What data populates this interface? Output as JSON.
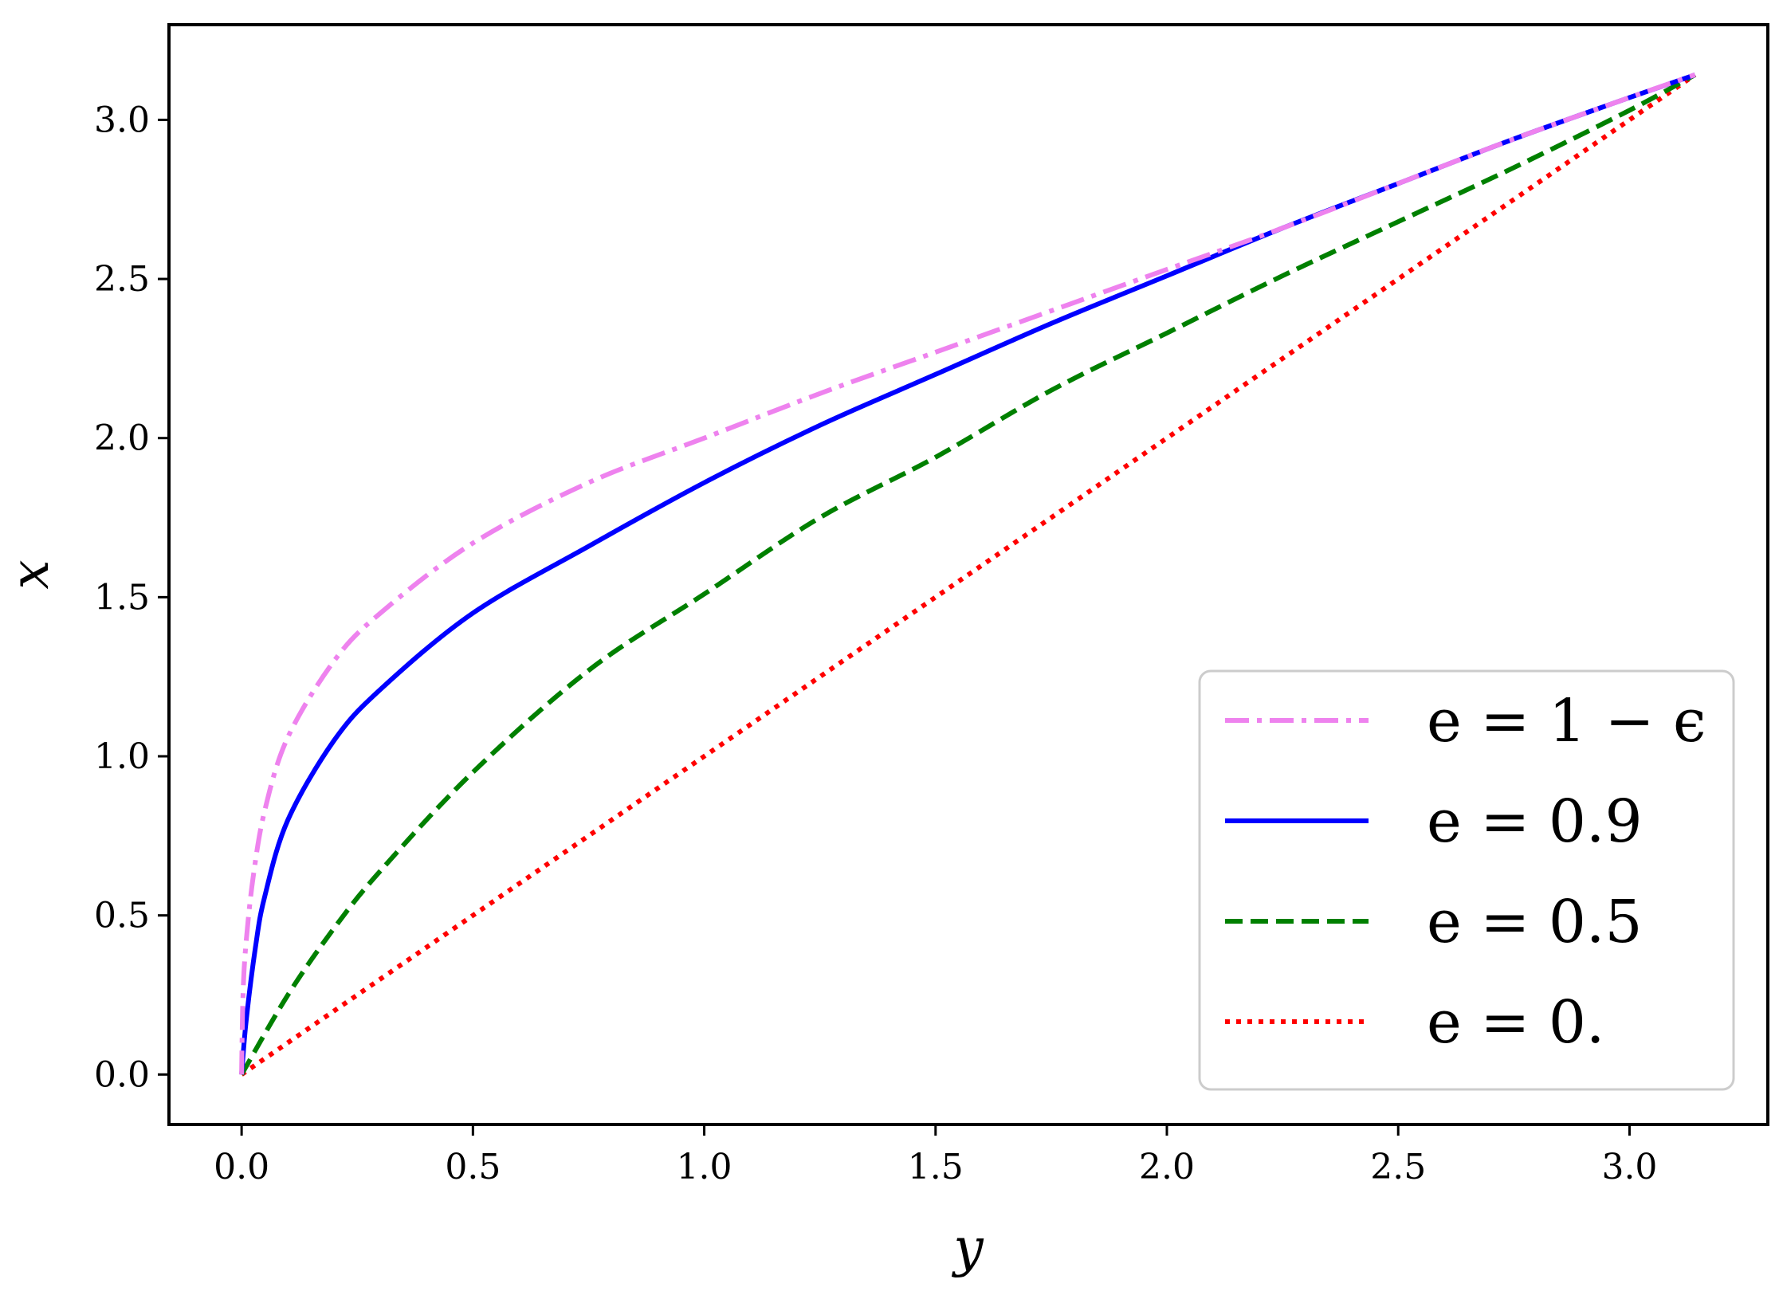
{
  "chart_data": {
    "type": "line",
    "title": "",
    "xlabel": "y",
    "ylabel": "x",
    "xlim": [
      -0.157,
      3.299
    ],
    "ylim": [
      -0.157,
      3.299
    ],
    "xticks": [
      0.0,
      0.5,
      1.0,
      1.5,
      2.0,
      2.5,
      3.0
    ],
    "yticks": [
      0.0,
      0.5,
      1.0,
      1.5,
      2.0,
      2.5,
      3.0
    ],
    "xtick_labels": [
      "0.0",
      "0.5",
      "1.0",
      "1.5",
      "2.0",
      "2.5",
      "3.0"
    ],
    "ytick_labels": [
      "0.0",
      "0.5",
      "1.0",
      "1.5",
      "2.0",
      "2.5",
      "3.0"
    ],
    "grid": false,
    "legend_position": "lower-right",
    "series": [
      {
        "name": "e = 1 − ϵ",
        "color": "#ee82ee",
        "dash": "dashdot",
        "x": [
          0.0,
          0.003,
          0.01,
          0.025,
          0.05,
          0.1,
          0.2,
          0.3,
          0.5,
          0.75,
          1.0,
          1.25,
          1.5,
          1.75,
          2.0,
          2.25,
          2.5,
          2.75,
          3.0,
          3.1416
        ],
        "y": [
          0.0,
          0.25,
          0.42,
          0.62,
          0.83,
          1.06,
          1.3,
          1.45,
          1.67,
          1.86,
          2.0,
          2.14,
          2.27,
          2.4,
          2.53,
          2.66,
          2.8,
          2.94,
          3.07,
          3.1416
        ]
      },
      {
        "name": "e = 0.9",
        "color": "#0000ff",
        "dash": "solid",
        "x": [
          0.0,
          0.01,
          0.03,
          0.05,
          0.1,
          0.2,
          0.3,
          0.5,
          0.75,
          1.0,
          1.25,
          1.5,
          1.75,
          2.0,
          2.25,
          2.5,
          2.75,
          3.0,
          3.1416
        ],
        "y": [
          0.0,
          0.17,
          0.4,
          0.56,
          0.8,
          1.05,
          1.21,
          1.45,
          1.66,
          1.86,
          2.04,
          2.2,
          2.36,
          2.51,
          2.66,
          2.8,
          2.94,
          3.07,
          3.1416
        ]
      },
      {
        "name": "e = 0.5",
        "color": "#008000",
        "dash": "dashed",
        "x": [
          0.0,
          0.1,
          0.2,
          0.3,
          0.5,
          0.75,
          1.0,
          1.25,
          1.5,
          1.75,
          2.0,
          2.25,
          2.5,
          2.75,
          3.0,
          3.1416
        ],
        "y": [
          0.0,
          0.25,
          0.46,
          0.64,
          0.95,
          1.27,
          1.51,
          1.75,
          1.94,
          2.15,
          2.33,
          2.51,
          2.68,
          2.85,
          3.03,
          3.1416
        ]
      },
      {
        "name": "e = 0.",
        "color": "#ff0000",
        "dash": "dotted",
        "x": [
          0.0,
          3.1416
        ],
        "y": [
          0.0,
          3.1416
        ]
      }
    ]
  }
}
